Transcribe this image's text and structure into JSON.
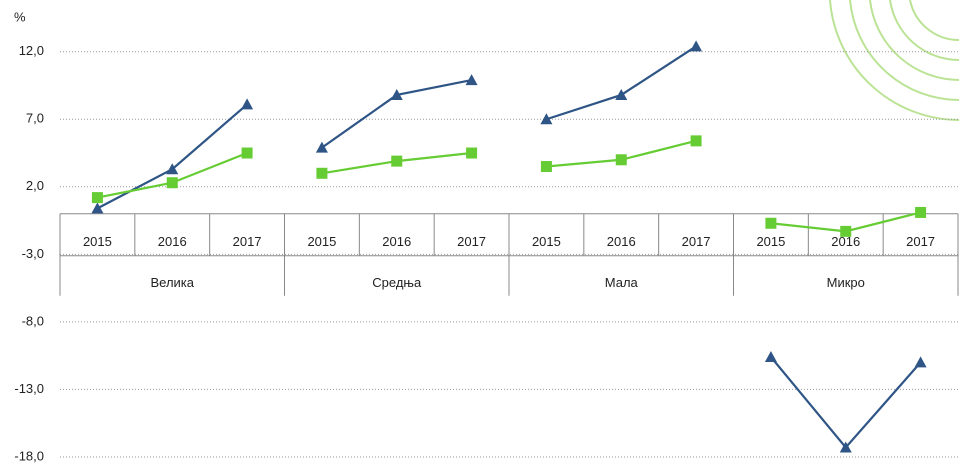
{
  "chart_data": {
    "type": "line",
    "y_label": "%",
    "groups": [
      {
        "name": "Велика",
        "categories": [
          "2015",
          "2016",
          "2017"
        ]
      },
      {
        "name": "Средња",
        "categories": [
          "2015",
          "2016",
          "2017"
        ]
      },
      {
        "name": "Мала",
        "categories": [
          "2015",
          "2016",
          "2017"
        ]
      },
      {
        "name": "Микро",
        "categories": [
          "2015",
          "2016",
          "2017"
        ]
      }
    ],
    "series": [
      {
        "color": "#2e5585",
        "marker": "triangle",
        "values": [
          [
            0.4,
            3.3,
            8.1
          ],
          [
            4.9,
            8.8,
            9.9
          ],
          [
            7.0,
            8.8,
            12.4
          ],
          [
            -10.6,
            -17.3,
            -11.0
          ]
        ]
      },
      {
        "color": "#66cc33",
        "marker": "square",
        "values": [
          [
            1.2,
            2.3,
            4.5
          ],
          [
            3.0,
            3.9,
            4.5
          ],
          [
            3.5,
            4.0,
            5.4
          ],
          [
            -0.7,
            -1.3,
            0.1
          ]
        ]
      }
    ],
    "ylim": [
      -18.3,
      14.2
    ],
    "yticks": [
      {
        "value": -18,
        "label": "-18,0"
      },
      {
        "value": -13,
        "label": "-13,0"
      },
      {
        "value": -8,
        "label": "-8,0"
      },
      {
        "value": -3,
        "label": "-3,0"
      },
      {
        "value": 2,
        "label": "2,0"
      },
      {
        "value": 7,
        "label": "7,0"
      },
      {
        "value": 12,
        "label": "12,0"
      }
    ],
    "grid": true
  }
}
